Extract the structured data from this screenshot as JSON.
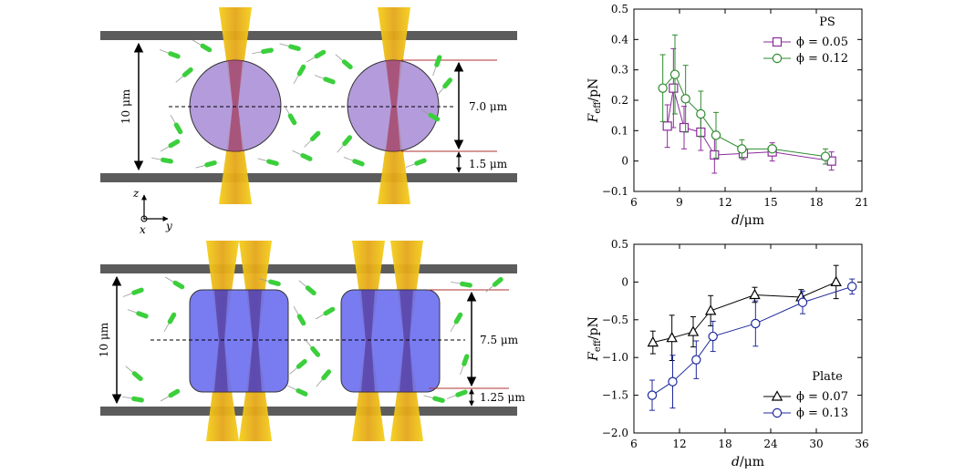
{
  "colors": {
    "wall": "#5c5c5c",
    "laser": "#f2c200",
    "laser_core": "#d98a1a",
    "sphere": "#a78bd6",
    "plate": "#6a6ef0",
    "bacteria": "#3ccf3c",
    "ps_005": "#8b2b9c",
    "ps_012": "#2e8b2e",
    "plate_007": "#000000",
    "plate_013": "#1f2a9c"
  },
  "diagram_top": {
    "gap_label": "10 μm",
    "diameter_label": "7.0 μm",
    "clearance_label": "1.5 μm",
    "axis_z": "z",
    "axis_x": "x",
    "axis_y": "y"
  },
  "diagram_bottom": {
    "gap_label": "10 μm",
    "height_label": "7.5 μm",
    "clearance_label": "1.25 μm"
  },
  "chart_data": [
    {
      "type": "line",
      "xlabel_main": "d",
      "xlabel_unit": "/μm",
      "ylabel_main": "F",
      "ylabel_sub": "eff",
      "ylabel_unit": "/pN",
      "xlim": [
        6,
        21
      ],
      "ylim": [
        -0.1,
        0.5
      ],
      "xticks": [
        "6",
        "9",
        "12",
        "15",
        "18",
        "21"
      ],
      "yticks": [
        "−0.1",
        "0",
        "0.1",
        "0.2",
        "0.3",
        "0.4",
        "0.5"
      ],
      "xtick_values": [
        6,
        9,
        12,
        15,
        18,
        21
      ],
      "ytick_values": [
        -0.1,
        0,
        0.1,
        0.2,
        0.3,
        0.4,
        0.5
      ],
      "legend_title": "PS",
      "legend_position": "top-right",
      "series": [
        {
          "name": "ϕ = 0.05",
          "marker": "square",
          "color_key": "ps_005",
          "x": [
            8.2,
            8.6,
            9.3,
            10.4,
            11.3,
            13.2,
            15.1,
            19.0
          ],
          "y": [
            0.115,
            0.24,
            0.11,
            0.095,
            0.02,
            0.025,
            0.03,
            0.0
          ],
          "err": [
            0.07,
            0.13,
            0.07,
            0.06,
            0.06,
            0.02,
            0.03,
            0.03
          ]
        },
        {
          "name": "ϕ = 0.12",
          "marker": "circle",
          "color_key": "ps_012",
          "x": [
            7.9,
            8.7,
            9.4,
            10.4,
            11.4,
            13.1,
            15.1,
            18.6
          ],
          "y": [
            0.24,
            0.285,
            0.205,
            0.155,
            0.085,
            0.04,
            0.04,
            0.015
          ],
          "err": [
            0.11,
            0.13,
            0.11,
            0.075,
            0.075,
            0.03,
            0.01,
            0.025
          ]
        }
      ]
    },
    {
      "type": "line",
      "xlabel_main": "d",
      "xlabel_unit": "/μm",
      "ylabel_main": "F",
      "ylabel_sub": "eff",
      "ylabel_unit": "/pN",
      "xlim": [
        6,
        36
      ],
      "ylim": [
        -2.0,
        0.5
      ],
      "xticks": [
        "6",
        "12",
        "18",
        "24",
        "30",
        "36"
      ],
      "yticks": [
        "−2.0",
        "−1.5",
        "−1.0",
        "−0.5",
        "0",
        "0.5"
      ],
      "xtick_values": [
        6,
        12,
        18,
        24,
        30,
        36
      ],
      "ytick_values": [
        -2.0,
        -1.5,
        -1.0,
        -0.5,
        0,
        0.5
      ],
      "legend_title": "Plate",
      "legend_position": "bottom-right",
      "series": [
        {
          "name": "ϕ = 0.07",
          "marker": "triangle",
          "color_key": "plate_007",
          "x": [
            8.5,
            11.0,
            13.8,
            16.1,
            21.9,
            28.0,
            32.6
          ],
          "y": [
            -0.8,
            -0.74,
            -0.66,
            -0.38,
            -0.17,
            -0.2,
            0.0
          ],
          "err": [
            0.15,
            0.3,
            0.2,
            0.2,
            0.1,
            0.1,
            0.22
          ]
        },
        {
          "name": "ϕ = 0.13",
          "marker": "circle",
          "color_key": "plate_013",
          "x": [
            8.4,
            11.1,
            14.2,
            16.4,
            22.0,
            28.2,
            34.7
          ],
          "y": [
            -1.5,
            -1.32,
            -1.03,
            -0.72,
            -0.55,
            -0.27,
            -0.06
          ],
          "err": [
            0.2,
            0.35,
            0.25,
            0.2,
            0.3,
            0.15,
            0.1
          ]
        }
      ]
    }
  ]
}
